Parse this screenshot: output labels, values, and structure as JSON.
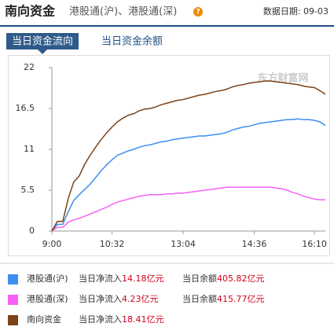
{
  "header": {
    "title": "南向资金",
    "subtitle": "港股通(沪)、港股通(深)",
    "date": "数据日期: 09-03"
  },
  "tabs": [
    "当日资金流向",
    "当日资金余额"
  ],
  "chart_data": {
    "type": "line",
    "watermark": "东方财富网",
    "categories": [
      "9:00",
      null,
      null,
      null,
      null,
      null,
      null,
      null,
      null,
      null,
      null,
      "10:32",
      null,
      null,
      null,
      null,
      null,
      null,
      null,
      null,
      null,
      null,
      null,
      null,
      "13:04",
      null,
      null,
      null,
      null,
      null,
      null,
      null,
      null,
      null,
      null,
      null,
      null,
      "14:36",
      null,
      null,
      null,
      null,
      null,
      null,
      null,
      null,
      null,
      null,
      "16:10",
      null,
      null
    ],
    "ylim": [
      0,
      22
    ],
    "yticks": [
      0,
      5.5,
      11,
      16.5,
      22
    ],
    "series": [
      {
        "name": "港股通(沪)",
        "color": "#3d8ef0",
        "inflow_label": "当日净流入",
        "inflow": "14.18亿元",
        "balance_label": "当日余额",
        "balance": "405.82亿元",
        "values": [
          0,
          0.9,
          0.9,
          2.6,
          4.1,
          4.9,
          5.6,
          6.3,
          7.2,
          8.1,
          8.9,
          9.6,
          10.2,
          10.5,
          10.8,
          11.0,
          11.3,
          11.5,
          11.6,
          11.8,
          12.0,
          12.1,
          12.3,
          12.4,
          12.5,
          12.6,
          12.7,
          12.8,
          12.8,
          12.9,
          13.0,
          13.1,
          13.3,
          13.6,
          13.8,
          14.0,
          14.1,
          14.3,
          14.5,
          14.6,
          14.7,
          14.8,
          14.9,
          15.0,
          15.0,
          15.1,
          15.0,
          15.0,
          14.9,
          14.7,
          14.2
        ]
      },
      {
        "name": "港股通(深)",
        "color": "#f562f5",
        "inflow_label": "当日净流入",
        "inflow": "4.23亿元",
        "balance_label": "当日余额",
        "balance": "415.77亿元",
        "values": [
          0,
          0.5,
          0.5,
          1.2,
          1.5,
          1.7,
          2.0,
          2.3,
          2.6,
          2.9,
          3.2,
          3.6,
          3.9,
          4.1,
          4.3,
          4.5,
          4.7,
          4.8,
          4.9,
          4.9,
          4.9,
          5.0,
          5.0,
          5.1,
          5.1,
          5.2,
          5.3,
          5.4,
          5.5,
          5.6,
          5.7,
          5.8,
          5.9,
          5.9,
          5.9,
          5.9,
          5.9,
          5.9,
          5.9,
          5.9,
          5.9,
          5.8,
          5.7,
          5.5,
          5.2,
          5.0,
          4.7,
          4.5,
          4.3,
          4.2,
          4.2
        ]
      },
      {
        "name": "南向资金",
        "color": "#7b4318",
        "inflow_label": "当日净流入",
        "inflow": "18.41亿元",
        "values": [
          0,
          1.3,
          1.3,
          4.4,
          6.6,
          7.4,
          9.0,
          10.2,
          11.3,
          12.3,
          13.2,
          14.0,
          14.7,
          15.2,
          15.6,
          15.8,
          16.2,
          16.4,
          16.5,
          16.7,
          17.0,
          17.2,
          17.4,
          17.6,
          17.7,
          17.9,
          18.1,
          18.3,
          18.4,
          18.6,
          18.8,
          18.9,
          19.1,
          19.4,
          19.6,
          19.7,
          19.9,
          20.0,
          20.1,
          20.2,
          20.2,
          20.1,
          20.0,
          19.9,
          19.8,
          19.7,
          19.5,
          19.4,
          19.3,
          18.9,
          18.4
        ]
      }
    ]
  }
}
